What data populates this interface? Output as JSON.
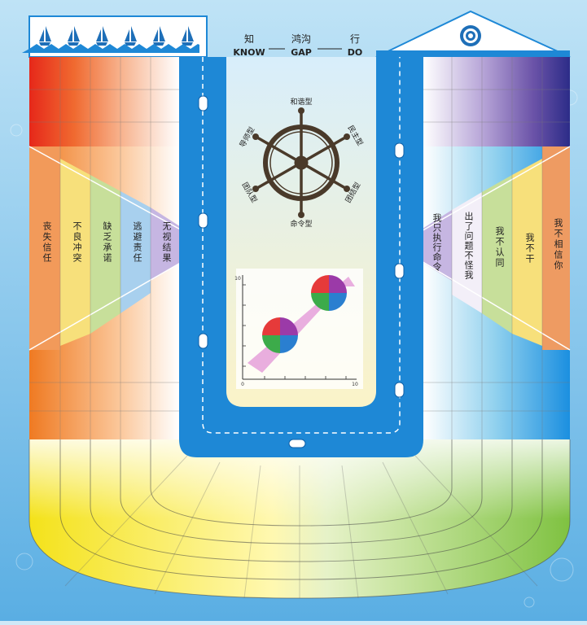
{
  "header": {
    "zh": [
      "知",
      "鸿沟",
      "行"
    ],
    "en": [
      "KNOW",
      "GAP",
      "DO"
    ]
  },
  "wheel": {
    "top": "和谐型",
    "upper_left": "导师型",
    "upper_right": "民主型",
    "lower_left": "团队型",
    "lower_right": "团结型",
    "bottom": "命令型"
  },
  "left_labels": [
    "丧失信任",
    "不良冲突",
    "缺乏承诺",
    "逃避责任",
    "无视结果"
  ],
  "right_labels": [
    "我只执行命令",
    "出了问题不怪我",
    "我不认同",
    "我不干",
    "我不相信你"
  ],
  "mini_chart": {
    "y_top": "10",
    "x_start": "0",
    "x_end": "10"
  },
  "colors": {
    "left_gradient": [
      "#e8301f",
      "#f07a3a",
      "#f5a977",
      "#fbd9c6",
      "#ffffff"
    ],
    "right_gradient": [
      "#ffffff",
      "#c9b7de",
      "#9a7fbe",
      "#6d55a8",
      "#2f2e8a"
    ],
    "channel": "#1e88d6",
    "sea": "#8dc7ee"
  }
}
